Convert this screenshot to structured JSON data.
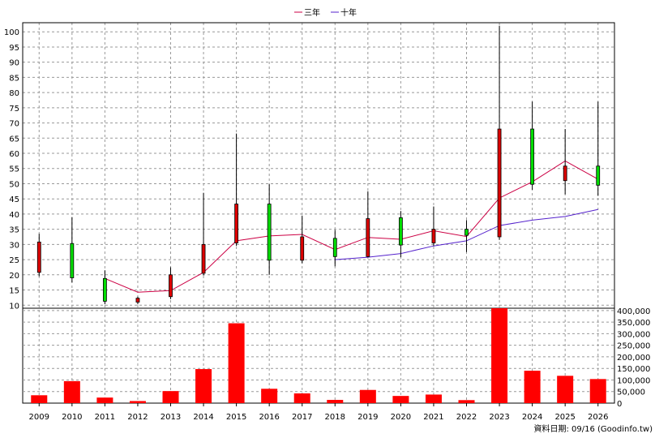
{
  "legend": [
    {
      "label": "三年",
      "color": "#cc0044"
    },
    {
      "label": "十年",
      "color": "#5522cc"
    }
  ],
  "footer": "資料日期: 09/16  (Goodinfo.tw)",
  "chart_data": [
    {
      "type": "candlestick",
      "categories": [
        "2009",
        "2010",
        "2011",
        "2012",
        "2013",
        "2014",
        "2015",
        "2016",
        "2017",
        "2018",
        "2019",
        "2020",
        "2021",
        "2022",
        "2023",
        "2024",
        "2025",
        "2026"
      ],
      "ylim": [
        9,
        103
      ],
      "y_ticks": [
        10,
        15,
        20,
        25,
        30,
        35,
        40,
        45,
        50,
        55,
        60,
        65,
        70,
        75,
        80,
        85,
        90,
        95,
        100
      ],
      "grid": true,
      "legend_position": "top-center",
      "candles": [
        {
          "open": 30.8,
          "high": 33.5,
          "low": 19.5,
          "close": 20.8,
          "dir": "down"
        },
        {
          "open": 19.0,
          "high": 39.0,
          "low": 17.5,
          "close": 30.3,
          "dir": "up"
        },
        {
          "open": 11.3,
          "high": 21.5,
          "low": 10.3,
          "close": 18.8,
          "dir": "up"
        },
        {
          "open": 12.3,
          "high": 12.8,
          "low": 10.3,
          "close": 11.0,
          "dir": "down"
        },
        {
          "open": 20.0,
          "high": 22.5,
          "low": 12.0,
          "close": 12.8,
          "dir": "down"
        },
        {
          "open": 30.0,
          "high": 47.0,
          "low": 19.8,
          "close": 20.5,
          "dir": "down"
        },
        {
          "open": 43.3,
          "high": 66.5,
          "low": 29.5,
          "close": 30.5,
          "dir": "down"
        },
        {
          "open": 24.8,
          "high": 49.8,
          "low": 20.0,
          "close": 43.3,
          "dir": "up"
        },
        {
          "open": 32.5,
          "high": 39.5,
          "low": 23.8,
          "close": 24.8,
          "dir": "down"
        },
        {
          "open": 26.0,
          "high": 34.8,
          "low": 22.8,
          "close": 32.0,
          "dir": "up"
        },
        {
          "open": 38.5,
          "high": 47.5,
          "low": 25.8,
          "close": 26.0,
          "dir": "down"
        },
        {
          "open": 29.8,
          "high": 41.0,
          "low": 25.8,
          "close": 38.8,
          "dir": "up"
        },
        {
          "open": 35.0,
          "high": 42.5,
          "low": 29.5,
          "close": 30.5,
          "dir": "down"
        },
        {
          "open": 33.0,
          "high": 38.0,
          "low": 27.5,
          "close": 35.0,
          "dir": "up"
        },
        {
          "open": 68.0,
          "high": 102.0,
          "low": 31.5,
          "close": 32.5,
          "dir": "down"
        },
        {
          "open": 49.8,
          "high": 77.0,
          "low": 48.0,
          "close": 68.0,
          "dir": "up"
        },
        {
          "open": 55.8,
          "high": 68.0,
          "low": 46.5,
          "close": 51.0,
          "dir": "down"
        },
        {
          "open": 49.5,
          "high": 77.0,
          "low": 46.0,
          "close": 55.8,
          "dir": "up"
        }
      ],
      "series": [
        {
          "name": "三年",
          "color": "#cc0044",
          "values": [
            null,
            null,
            18.8,
            14.3,
            14.8,
            20.8,
            31.2,
            32.8,
            33.3,
            28.3,
            32.3,
            31.7,
            34.5,
            32.6,
            45.3,
            50.6,
            57.5,
            51.5
          ]
        },
        {
          "name": "十年",
          "color": "#5522cc",
          "values": [
            null,
            null,
            null,
            null,
            null,
            null,
            null,
            null,
            null,
            25.0,
            25.8,
            27.0,
            29.5,
            31.2,
            36.2,
            38.0,
            39.2,
            41.5
          ]
        }
      ]
    },
    {
      "type": "bar",
      "categories": [
        "2009",
        "2010",
        "2011",
        "2012",
        "2013",
        "2014",
        "2015",
        "2016",
        "2017",
        "2018",
        "2019",
        "2020",
        "2021",
        "2022",
        "2023",
        "2024",
        "2025",
        "2026"
      ],
      "values": [
        34000,
        95000,
        24000,
        9000,
        52000,
        147000,
        345000,
        62000,
        42000,
        14000,
        57000,
        31000,
        37000,
        13000,
        410000,
        140000,
        118000,
        104000
      ],
      "ylim": [
        0,
        410000
      ],
      "y_ticks": [
        0,
        50000,
        100000,
        150000,
        200000,
        250000,
        300000,
        350000,
        400000
      ],
      "y_tick_labels": [
        "0",
        "50,000",
        "100,000",
        "150,000",
        "200,000",
        "250,000",
        "300,000",
        "350,000",
        "400,000"
      ],
      "color": "#ff0000",
      "grid": true
    }
  ]
}
